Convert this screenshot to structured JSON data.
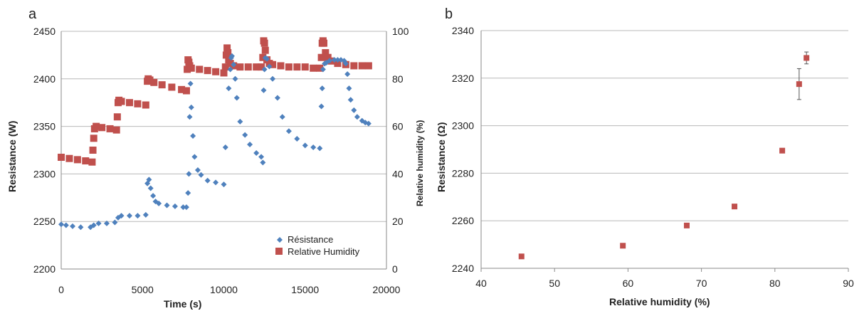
{
  "chart_data": [
    {
      "type": "scatter",
      "panel_label": "a",
      "xlabel": "Time (s)",
      "ylabel": "Resistance (W)",
      "y2label": "Relative humidity (%)",
      "xlim": [
        0,
        20000
      ],
      "ylim": [
        2200,
        2450
      ],
      "y2lim": [
        0,
        100
      ],
      "xticks": [
        "0",
        "5000",
        "10000",
        "15000",
        "20000"
      ],
      "yticks": [
        "2200",
        "2250",
        "2300",
        "2350",
        "2400",
        "2450"
      ],
      "y2ticks": [
        "0",
        "20",
        "40",
        "60",
        "80",
        "100"
      ],
      "grid": true,
      "legend_position": "bottom-right",
      "series": [
        {
          "name": "Résistance",
          "axis": "left",
          "color": "#4f81bd",
          "marker": "diamond",
          "x": [
            0,
            300,
            700,
            1200,
            1800,
            2000,
            2300,
            2800,
            3300,
            3500,
            3700,
            4200,
            4700,
            5200,
            5300,
            5400,
            5500,
            5650,
            5800,
            6000,
            6500,
            7000,
            7500,
            7700,
            7800,
            7850,
            7900,
            7950,
            8000,
            8100,
            8200,
            8400,
            8600,
            9000,
            9500,
            10000,
            10100,
            10300,
            10400,
            10450,
            10500,
            10600,
            10700,
            10800,
            11000,
            11300,
            11600,
            12000,
            12300,
            12400,
            12450,
            12500,
            12550,
            12650,
            12800,
            13000,
            13300,
            13600,
            14000,
            14500,
            15000,
            15500,
            15900,
            16000,
            16050,
            16100,
            16200,
            16300,
            16500,
            16800,
            17000,
            17200,
            17400,
            17500,
            17600,
            17700,
            17800,
            18000,
            18200,
            18500,
            18700,
            18900
          ],
          "y": [
            2247,
            2246,
            2245,
            2244,
            2244,
            2246,
            2248,
            2248,
            2249,
            2254,
            2256,
            2256,
            2256,
            2257,
            2290,
            2294,
            2285,
            2277,
            2271,
            2269,
            2267,
            2266,
            2265,
            2265,
            2280,
            2300,
            2360,
            2395,
            2370,
            2340,
            2318,
            2304,
            2299,
            2293,
            2291,
            2289,
            2328,
            2390,
            2410,
            2422,
            2424,
            2415,
            2400,
            2380,
            2355,
            2341,
            2331,
            2322,
            2318,
            2312,
            2388,
            2410,
            2422,
            2421,
            2413,
            2400,
            2380,
            2360,
            2345,
            2337,
            2330,
            2328,
            2327,
            2371,
            2390,
            2410,
            2416,
            2417,
            2419,
            2420,
            2420,
            2420,
            2419,
            2416,
            2405,
            2390,
            2378,
            2367,
            2360,
            2356,
            2354,
            2353
          ]
        },
        {
          "name": "Relative Humidity",
          "axis": "right",
          "color": "#c0504d",
          "marker": "square",
          "x": [
            0,
            500,
            1000,
            1500,
            1900,
            1950,
            2000,
            2050,
            2150,
            2500,
            3000,
            3400,
            3450,
            3500,
            3550,
            3700,
            4200,
            4700,
            5200,
            5300,
            5350,
            5450,
            5700,
            6200,
            6800,
            7400,
            7700,
            7750,
            7800,
            7850,
            7900,
            8000,
            8500,
            9000,
            9500,
            10000,
            10100,
            10150,
            10200,
            10250,
            10300,
            10400,
            10600,
            11000,
            11500,
            12000,
            12300,
            12400,
            12450,
            12500,
            12550,
            12650,
            12800,
            13000,
            13500,
            14000,
            14500,
            15000,
            15500,
            15900,
            16000,
            16050,
            16100,
            16150,
            16250,
            16400,
            16600,
            17000,
            17500,
            18000,
            18500,
            18900
          ],
          "y": [
            47,
            46.5,
            46,
            45.5,
            45,
            50,
            55,
            59,
            60,
            59.5,
            59,
            58.5,
            64,
            70,
            71,
            70.5,
            70,
            69.5,
            69,
            79,
            80,
            79.5,
            78.5,
            77.5,
            76.5,
            75.5,
            75,
            84,
            88,
            87,
            85.5,
            84.5,
            84,
            83.5,
            83,
            82.5,
            85,
            90,
            93,
            91,
            88,
            86.5,
            85.5,
            85,
            85,
            85,
            85,
            89,
            96,
            95,
            92,
            88,
            86.5,
            86,
            85.5,
            85,
            85,
            85,
            84.5,
            84.5,
            89,
            95,
            96,
            95,
            91,
            89,
            87.5,
            86.5,
            86,
            85.5,
            85.5,
            85.5
          ]
        }
      ]
    },
    {
      "type": "scatter",
      "panel_label": "b",
      "xlabel": "Relative humidity (%)",
      "ylabel": "Resistance (Ω)",
      "xlim": [
        40,
        90
      ],
      "ylim": [
        2240,
        2340
      ],
      "xticks": [
        "40",
        "50",
        "60",
        "70",
        "80",
        "90"
      ],
      "yticks": [
        "2240",
        "2260",
        "2280",
        "2300",
        "2320",
        "2340"
      ],
      "grid": true,
      "series": [
        {
          "color": "#c0504d",
          "marker": "square",
          "x": [
            45.5,
            59.3,
            68,
            74.5,
            81,
            83.3,
            84.3
          ],
          "y": [
            2245,
            2249.5,
            2258,
            2266,
            2289.5,
            2317.5,
            2328.5
          ],
          "error": [
            0,
            0,
            0,
            0,
            0,
            6.5,
            2.5
          ]
        }
      ]
    }
  ]
}
